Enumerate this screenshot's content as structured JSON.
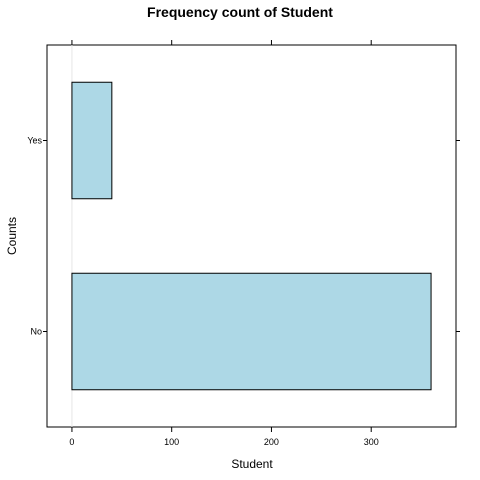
{
  "chart_data": {
    "type": "bar",
    "orientation": "horizontal",
    "title": "Frequency count of Student",
    "xlabel": "Student",
    "ylabel": "Counts",
    "categories": [
      "No",
      "Yes"
    ],
    "values": [
      360,
      40
    ],
    "xlim": [
      -25,
      385
    ],
    "x_ticks": [
      0,
      100,
      200,
      300
    ],
    "bar_color": "#add8e6",
    "bar_edge_color": "#000000",
    "grid": false,
    "legend": "none"
  }
}
